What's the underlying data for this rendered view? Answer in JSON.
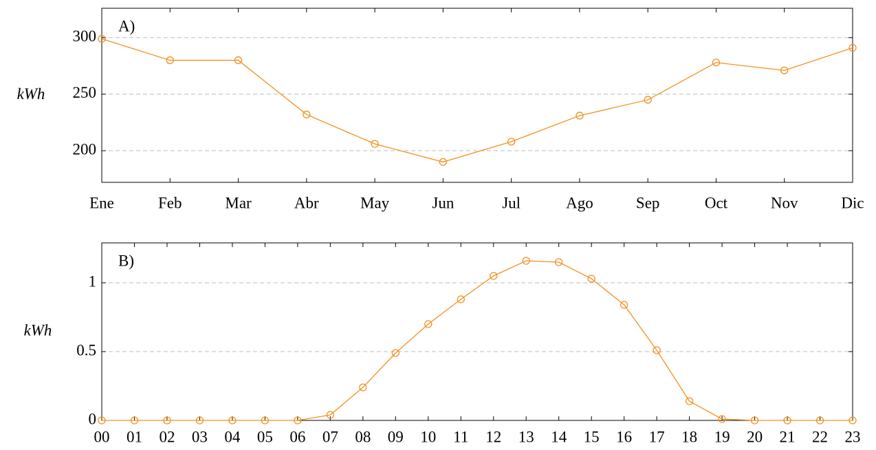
{
  "chart_data": [
    {
      "type": "line",
      "annotation": "A)",
      "y_label": "kWh",
      "categories": [
        "Ene",
        "Feb",
        "Mar",
        "Abr",
        "May",
        "Jun",
        "Jul",
        "Ago",
        "Sep",
        "Oct",
        "Nov",
        "Dic"
      ],
      "values": [
        299,
        280,
        280,
        232,
        206,
        190,
        208,
        231,
        245,
        278,
        271,
        291
      ],
      "color": "#f39020",
      "ylim": [
        172,
        326
      ],
      "yticks": [
        200,
        250,
        300
      ],
      "grid": true
    },
    {
      "type": "line",
      "annotation": "B)",
      "y_label": "kWh",
      "categories": [
        "00",
        "01",
        "02",
        "03",
        "04",
        "05",
        "06",
        "07",
        "08",
        "09",
        "10",
        "11",
        "12",
        "13",
        "14",
        "15",
        "16",
        "17",
        "18",
        "19",
        "20",
        "21",
        "22",
        "23"
      ],
      "values": [
        0,
        0,
        0,
        0,
        0,
        0,
        0,
        0.04,
        0.24,
        0.49,
        0.7,
        0.88,
        1.05,
        1.16,
        1.15,
        1.03,
        0.84,
        0.51,
        0.14,
        0.01,
        0,
        0,
        0,
        0
      ],
      "color": "#f39020",
      "ylim": [
        0,
        1.29
      ],
      "yticks": [
        0,
        0.5,
        1
      ],
      "grid": true
    }
  ]
}
